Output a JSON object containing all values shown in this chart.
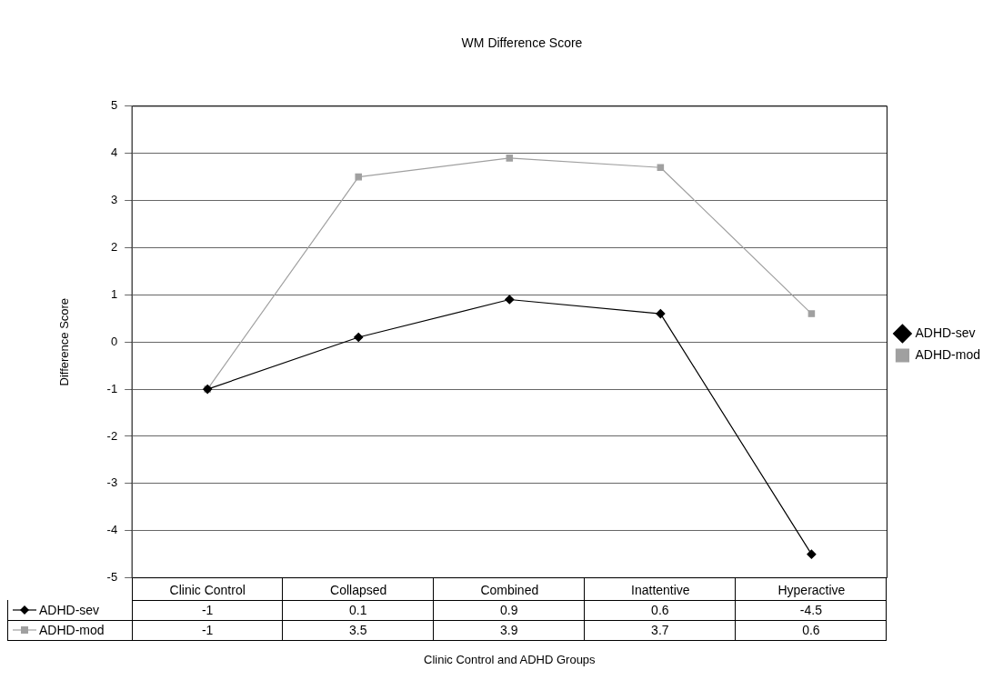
{
  "chart_data": {
    "type": "line",
    "title": "WM Difference Score",
    "xlabel": "Clinic Control and ADHD Groups",
    "ylabel": "Difference Score",
    "categories": [
      "Clinic Control",
      "Collapsed",
      "Combined",
      "Inattentive",
      "Hyperactive"
    ],
    "series": [
      {
        "name": "ADHD-sev",
        "color": "#000000",
        "marker": "diamond",
        "values": [
          -1,
          0.1,
          0.9,
          0.6,
          -4.5
        ]
      },
      {
        "name": "ADHD-mod",
        "color": "#a0a0a0",
        "marker": "square",
        "values": [
          -1,
          3.5,
          3.9,
          3.7,
          0.6
        ]
      }
    ],
    "ylim": [
      -5,
      5
    ],
    "yticks": [
      -5,
      -4,
      -3,
      -2,
      -1,
      0,
      1,
      2,
      3,
      4,
      5
    ],
    "grid": "y",
    "legend": "right",
    "line_style": "solid",
    "data_labels": true
  }
}
